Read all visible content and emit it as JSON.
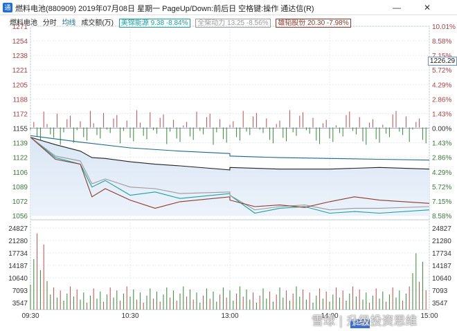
{
  "window": {
    "title": "燃料电池(880909) 2019年07月08日 星期一 PageUp/Down:前后日 空格键:操作 通达信(R)",
    "minimize_glyph": "—",
    "close_glyph": "✕"
  },
  "legend": {
    "name": "燃料电池",
    "item_fenshi": "分时",
    "item_junxian": "均线",
    "item_volume": "成交额(万)",
    "stock1": "美锦能源 9.38 -8.84%",
    "stock2": "全柴动力 13.25 -8.56%",
    "stock3": "雄韬股份 20.30 -7.98%",
    "colors": {
      "price": "#222222",
      "avg": "#1a6a8a",
      "stock1": "#18a0a0",
      "stock2": "#9a9a9a",
      "stock3": "#8b3a2a",
      "up": "#c04a4a",
      "down": "#2f8a2f"
    }
  },
  "axes": {
    "left_price_ticks": [
      "1271",
      "1254",
      "1238",
      "1221",
      "1205",
      "1188",
      "1172",
      "1155",
      "1139",
      "1122",
      "1106",
      "1089",
      "1072",
      "1056"
    ],
    "right_pct_ticks": [
      "10.01%",
      "8.58%",
      "7.15%",
      "5.72%",
      "4.29%",
      "2.86%",
      "1.43%",
      "0.00%",
      "1.43%",
      "2.86%",
      "4.29%",
      "5.72%",
      "7.15%",
      "8.58%"
    ],
    "left_volume_ticks": [
      "24827",
      "21280",
      "17734",
      "14187",
      "10640",
      "7093",
      "3547"
    ],
    "right_volume_ticks": [
      "24827",
      "21280",
      "17734",
      "14187",
      "10640",
      "7093",
      "3547"
    ],
    "time_ticks": [
      "09:30",
      "10:30",
      "13:00",
      "14:00",
      "15:00"
    ]
  },
  "cursor": {
    "time": "14:23",
    "price": "1226.29"
  },
  "watermark": "雪球 | 升级投资思维",
  "chart_data": {
    "type": "line",
    "x_range": [
      "09:30",
      "15:00"
    ],
    "ylim": [
      1047,
      1279
    ],
    "prev_close": 1155,
    "series": [
      {
        "name": "分时",
        "x": [
          "09:30",
          "09:45",
          "10:00",
          "10:07",
          "10:15",
          "10:30",
          "10:45",
          "11:00",
          "11:30",
          "13:00",
          "13:30",
          "14:00",
          "14:30",
          "15:00"
        ],
        "values": [
          1143,
          1134,
          1126,
          1118,
          1117,
          1113,
          1110,
          1108,
          1103,
          1106,
          1104,
          1104,
          1106,
          1104
        ]
      },
      {
        "name": "均线",
        "x": [
          "09:30",
          "10:00",
          "10:30",
          "11:00",
          "11:30",
          "13:00",
          "13:30",
          "14:00",
          "14:30",
          "15:00"
        ],
        "values": [
          1145,
          1137,
          1130,
          1126,
          1123,
          1120,
          1118,
          1117,
          1116,
          1115
        ]
      },
      {
        "name": "美锦能源",
        "x": [
          "09:30",
          "09:45",
          "10:00",
          "10:07",
          "10:15",
          "10:30",
          "10:45",
          "11:00",
          "11:30",
          "13:00",
          "13:15",
          "13:30",
          "13:45",
          "14:00",
          "14:15",
          "14:30",
          "15:00"
        ],
        "values": [
          1143,
          1118,
          1110,
          1082,
          1090,
          1072,
          1076,
          1068,
          1074,
          1072,
          1050,
          1056,
          1058,
          1050,
          1052,
          1050,
          1054
        ]
      },
      {
        "name": "全柴动力",
        "x": [
          "09:30",
          "09:45",
          "10:00",
          "10:07",
          "10:15",
          "10:30",
          "10:45",
          "11:00",
          "11:30",
          "13:00",
          "13:15",
          "13:30",
          "13:45",
          "14:00",
          "14:15",
          "14:30",
          "15:00"
        ],
        "values": [
          1143,
          1120,
          1114,
          1086,
          1092,
          1082,
          1080,
          1074,
          1076,
          1072,
          1054,
          1058,
          1060,
          1054,
          1056,
          1056,
          1058
        ]
      },
      {
        "name": "雄韬股份",
        "x": [
          "09:30",
          "09:45",
          "10:00",
          "10:07",
          "10:15",
          "10:30",
          "10:45",
          "11:00",
          "11:30",
          "13:00",
          "13:15",
          "13:30",
          "13:45",
          "14:00",
          "14:15",
          "14:30",
          "15:00"
        ],
        "values": [
          1143,
          1116,
          1110,
          1070,
          1080,
          1066,
          1056,
          1064,
          1070,
          1066,
          1058,
          1060,
          1057,
          1064,
          1070,
          1066,
          1062
        ]
      }
    ]
  }
}
